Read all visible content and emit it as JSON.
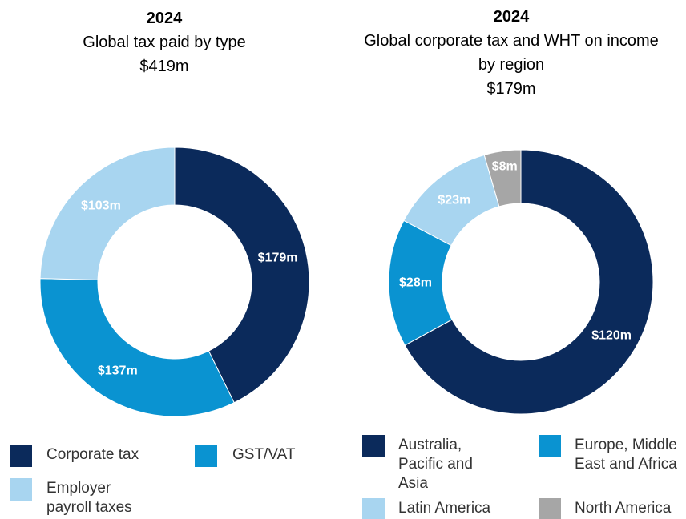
{
  "chart_data": [
    {
      "type": "donut",
      "year": "2024",
      "title": "Global tax paid by type",
      "total": "$419m",
      "categories": [
        "Corporate tax",
        "GST/VAT",
        "Employer payroll taxes"
      ],
      "values": [
        179,
        137,
        103
      ],
      "value_labels": [
        "$179m",
        "$137m",
        "$103m"
      ],
      "colors": [
        "#0b2a5b",
        "#0a93d1",
        "#a8d5f0"
      ]
    },
    {
      "type": "donut",
      "year": "2024",
      "title": "Global corporate tax and WHT on income by region",
      "total": "$179m",
      "categories": [
        "Australia, Pacific and Asia",
        "Europe, Middle East and Africa",
        "Latin America",
        "North America"
      ],
      "values": [
        120,
        28,
        23,
        8
      ],
      "value_labels": [
        "$120m",
        "$28m",
        "$23m",
        "$8m"
      ],
      "colors": [
        "#0b2a5b",
        "#0a93d1",
        "#a8d5f0",
        "#a6a6a6"
      ]
    }
  ]
}
